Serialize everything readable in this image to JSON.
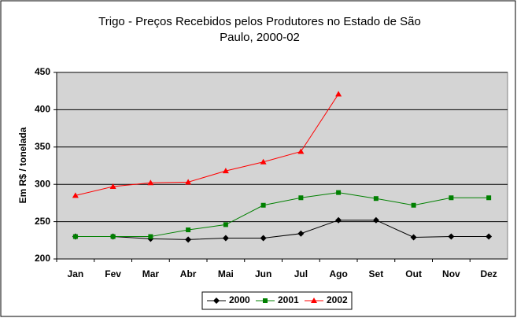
{
  "chart_data": {
    "type": "line",
    "title": [
      "Trigo - Preços Recebidos pelos Produtores no Estado de São",
      "Paulo, 2000-02"
    ],
    "y_label": "Em R$ / tonelada",
    "categories": [
      "Jan",
      "Fev",
      "Mar",
      "Abr",
      "Mai",
      "Jun",
      "Jul",
      "Ago",
      "Set",
      "Out",
      "Nov",
      "Dez"
    ],
    "series": [
      {
        "name": "2000",
        "color": "#000000",
        "marker": "diamond",
        "values": [
          230,
          230,
          227,
          226,
          228,
          228,
          234,
          252,
          252,
          229,
          230,
          230
        ]
      },
      {
        "name": "2001",
        "color": "#008000",
        "marker": "square",
        "values": [
          230,
          230,
          230,
          239,
          246,
          272,
          282,
          289,
          281,
          272,
          282,
          282
        ]
      },
      {
        "name": "2002",
        "color": "#ff0000",
        "marker": "triangle",
        "values": [
          285,
          297,
          302,
          303,
          318,
          330,
          344,
          421,
          null,
          null,
          null,
          null
        ]
      }
    ],
    "ylim": [
      200,
      450
    ],
    "yticks": [
      200,
      250,
      300,
      350,
      400,
      450
    ],
    "grid": true,
    "legend": "bottom"
  }
}
